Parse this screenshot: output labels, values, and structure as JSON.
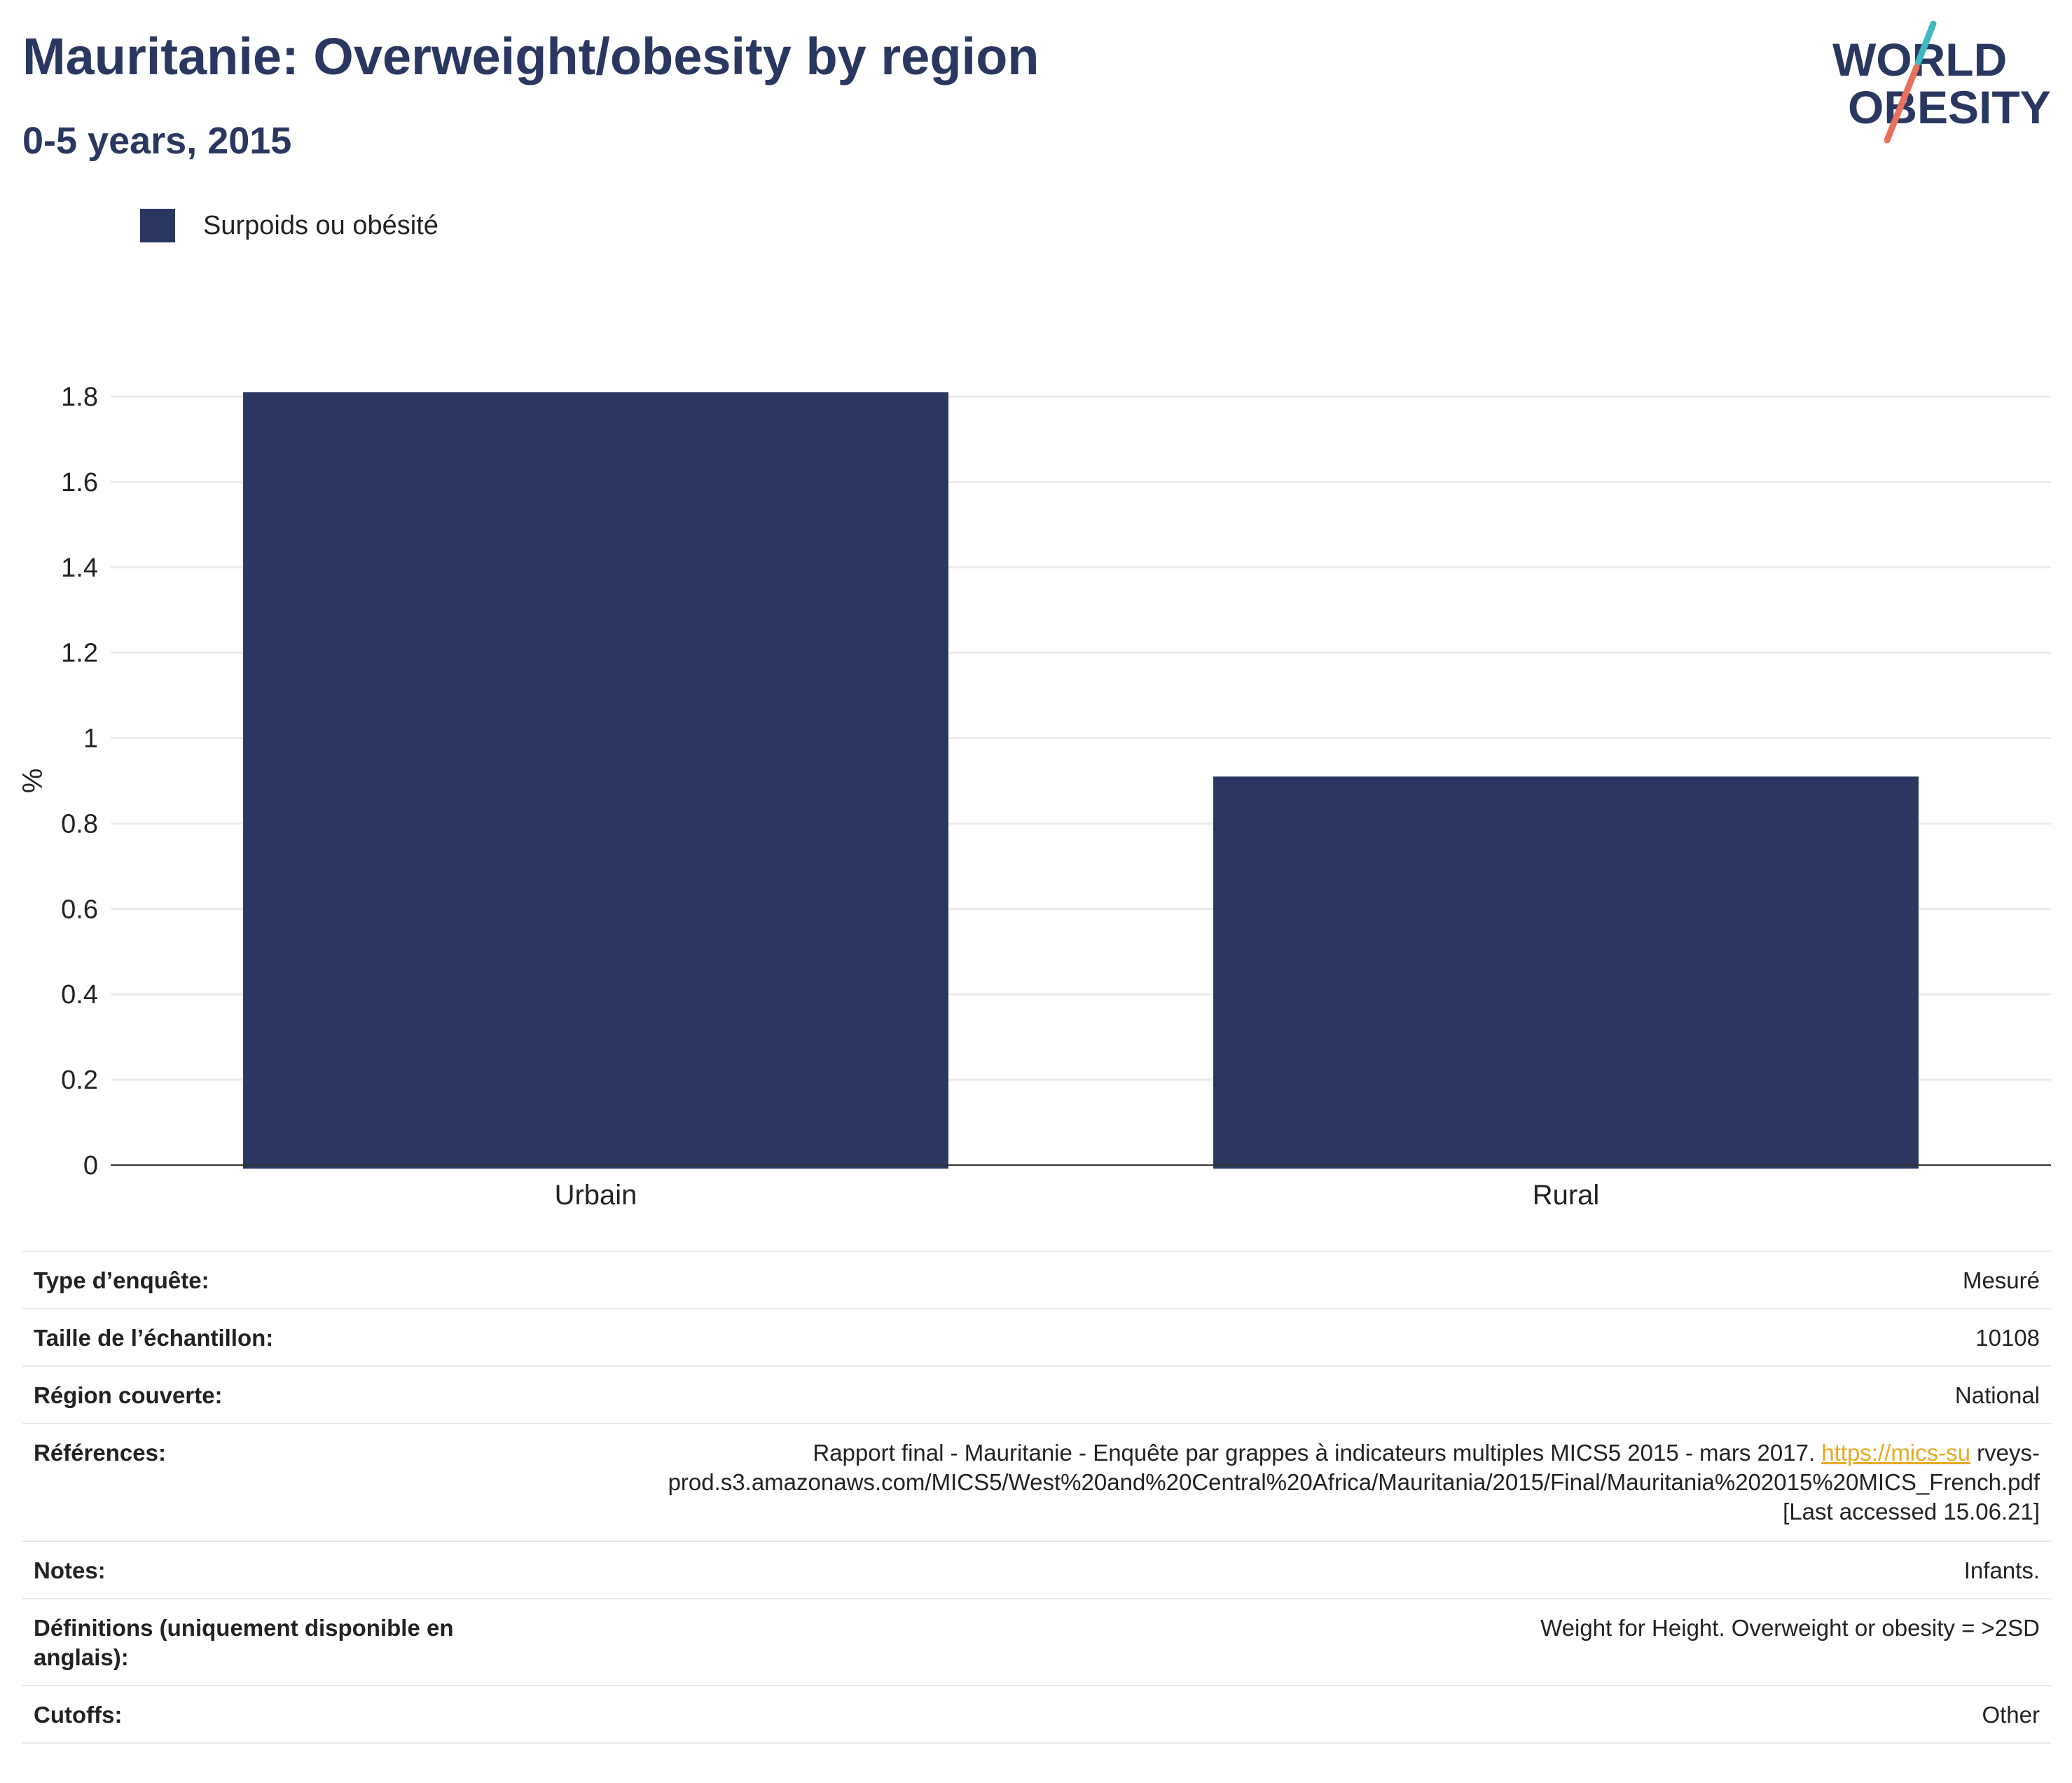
{
  "header": {
    "title": "Mauritanie: Overweight/obesity by region",
    "subtitle": "0-5 years, 2015"
  },
  "logo": {
    "line1": "WORLD",
    "line2": "OBESITY",
    "accent_teal": "#3fb8c0",
    "accent_coral": "#e8705f"
  },
  "chart_data": {
    "type": "bar",
    "categories": [
      "Urbain",
      "Rural"
    ],
    "series": [
      {
        "name": "Surpoids ou obésité",
        "values": [
          1.81,
          0.91
        ],
        "color": "#2a3760"
      }
    ],
    "ylabel": "%",
    "xlabel": "",
    "ylim": [
      0,
      1.8
    ],
    "yticks": [
      "0",
      "0.2",
      "0.4",
      "0.6",
      "0.8",
      "1",
      "1.2",
      "1.4",
      "1.6",
      "1.8"
    ],
    "grid": true,
    "legend": "top-left"
  },
  "info": {
    "survey_type": {
      "label": "Type d’enquête:",
      "value": "Mesuré"
    },
    "sample_size": {
      "label": "Taille de l’échantillon:",
      "value": "10108"
    },
    "region": {
      "label": "Région couverte:",
      "value": "National"
    },
    "references": {
      "label": "Références:",
      "text1": "Rapport final - Mauritanie - Enquête par grappes à indicateurs multiples MICS5 2015 - mars 2017. ",
      "link": "https://mics-su",
      "text2": "rveys-",
      "line2": "prod.s3.amazonaws.com/MICS5/West%20and%20Central%20Africa/Mauritania/2015/Final/Mauritania%202015%20MICS_French.pdf",
      "line3": "[Last accessed 15.06.21]"
    },
    "notes": {
      "label": "Notes:",
      "value": "Infants."
    },
    "definitions": {
      "label": "Définitions (uniquement disponible en anglais):",
      "value": "Weight for Height. Overweight or obesity = >2SD"
    },
    "cutoffs": {
      "label": "Cutoffs:",
      "value": "Other"
    }
  }
}
